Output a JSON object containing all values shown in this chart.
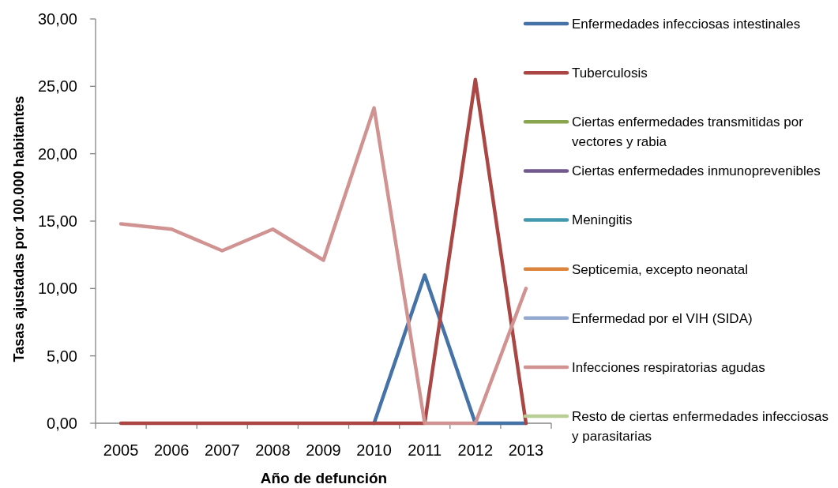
{
  "chart_data": {
    "type": "line",
    "xlabel": "Año de defunción",
    "ylabel": "Tasas ajustadas por 100.000 habitantes",
    "categories": [
      "2005",
      "2006",
      "2007",
      "2008",
      "2009",
      "2010",
      "2011",
      "2012",
      "2013"
    ],
    "ylim": [
      0,
      30
    ],
    "yticks": [
      {
        "value": 0,
        "label": "0,00"
      },
      {
        "value": 5,
        "label": "5,00"
      },
      {
        "value": 10,
        "label": "10,00"
      },
      {
        "value": 15,
        "label": "15,00"
      },
      {
        "value": 20,
        "label": "20,00"
      },
      {
        "value": 25,
        "label": "25,00"
      },
      {
        "value": 30,
        "label": "30,00"
      }
    ],
    "legend": "right",
    "line_style": "solid",
    "series": [
      {
        "name": "Enfermedades infecciosas intestinales",
        "color": "#4572a7",
        "values": [
          null,
          null,
          null,
          null,
          null,
          0,
          11.0,
          0,
          0
        ]
      },
      {
        "name": "Tuberculosis",
        "color": "#aa4643",
        "values": [
          0,
          0,
          0,
          0,
          0,
          0,
          0,
          25.5,
          0
        ]
      },
      {
        "name": "Ciertas enfermedades transmitidas por vectores y rabia",
        "color": "#89a54e",
        "values": [
          null,
          null,
          null,
          null,
          null,
          null,
          null,
          null,
          null
        ]
      },
      {
        "name": "Ciertas enfermedades inmunoprevenibles",
        "color": "#71588f",
        "values": [
          null,
          null,
          null,
          null,
          null,
          null,
          null,
          null,
          null
        ]
      },
      {
        "name": "Meningitis",
        "color": "#4198af",
        "values": [
          null,
          null,
          null,
          null,
          null,
          null,
          null,
          null,
          null
        ]
      },
      {
        "name": "Septicemia, excepto neonatal",
        "color": "#db843d",
        "values": [
          null,
          null,
          null,
          null,
          null,
          null,
          null,
          null,
          null
        ]
      },
      {
        "name": "Enfermedad por el VIH (SIDA)",
        "color": "#93a9cf",
        "values": [
          null,
          null,
          null,
          null,
          null,
          null,
          null,
          null,
          null
        ]
      },
      {
        "name": "Infecciones respiratorias agudas",
        "color": "#d19392",
        "values": [
          14.8,
          14.4,
          12.8,
          14.4,
          12.1,
          23.4,
          0,
          0,
          10.0
        ]
      },
      {
        "name": "Resto de ciertas enfermedades infecciosas y parasitarias",
        "color": "#b9cd96",
        "values": [
          null,
          null,
          null,
          null,
          null,
          null,
          null,
          null,
          null
        ]
      }
    ]
  }
}
